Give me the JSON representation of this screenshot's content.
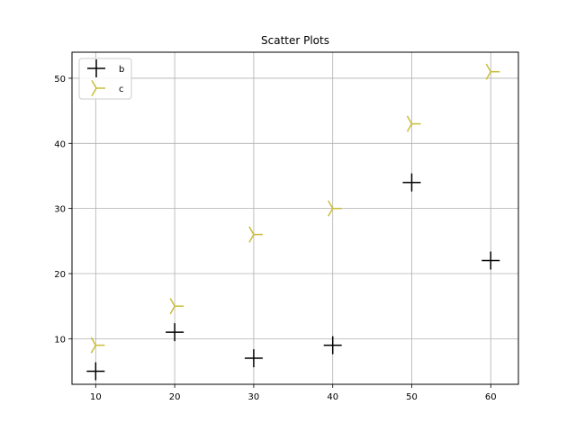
{
  "chart_data": {
    "type": "scatter",
    "title": "Scatter Plots",
    "xlabel": "",
    "ylabel": "",
    "xlim": [
      7,
      63.5
    ],
    "ylim": [
      3,
      54
    ],
    "xticks": [
      10,
      20,
      30,
      40,
      50,
      60
    ],
    "yticks": [
      10,
      20,
      30,
      40,
      50
    ],
    "grid": true,
    "legend_position": "top-left",
    "series": [
      {
        "name": "b",
        "marker": "plus",
        "color": "#000000",
        "x": [
          10,
          20,
          30,
          40,
          50,
          60
        ],
        "y": [
          5,
          11,
          7,
          9,
          34,
          22
        ]
      },
      {
        "name": "c",
        "marker": "tri-right",
        "color": "#c9bd3a",
        "x": [
          10,
          20,
          30,
          40,
          50,
          60
        ],
        "y": [
          9,
          15,
          26,
          30,
          43,
          51
        ]
      }
    ]
  }
}
